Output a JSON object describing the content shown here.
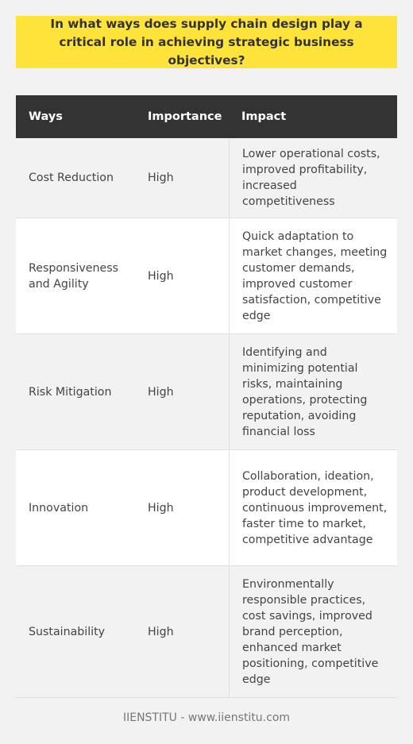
{
  "title": "In what ways does supply chain design play a critical role in achieving strategic business objectives?",
  "table": {
    "headers": [
      "Ways",
      "Importance",
      "Impact"
    ],
    "rows": [
      {
        "way": "Cost Reduction",
        "importance": "High",
        "impact": "Lower operational costs, improved profitability, increased competitiveness"
      },
      {
        "way": "Responsiveness and Agility",
        "importance": "High",
        "impact": "Quick adaptation to market changes, meeting customer demands, improved customer satisfaction, competitive edge"
      },
      {
        "way": "Risk Mitigation",
        "importance": "High",
        "impact": "Identifying and minimizing potential risks, maintaining operations, protecting reputation, avoiding financial loss"
      },
      {
        "way": "Innovation",
        "importance": "High",
        "impact": "Collaboration, ideation, product development, continuous improvement, faster time to market, competitive advantage"
      },
      {
        "way": "Sustainability",
        "importance": "High",
        "impact": "Environmentally responsible practices, cost savings, improved brand perception, enhanced market positioning, competitive edge"
      }
    ]
  },
  "footer": "IIENSTITU - www.iienstitu.com"
}
